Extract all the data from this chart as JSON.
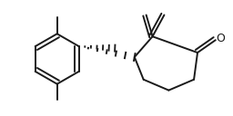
{
  "bg_color": "#ffffff",
  "line_color": "#1a1a1a",
  "lw": 1.4,
  "fig_w": 2.56,
  "fig_h": 1.28,
  "dpi": 100
}
